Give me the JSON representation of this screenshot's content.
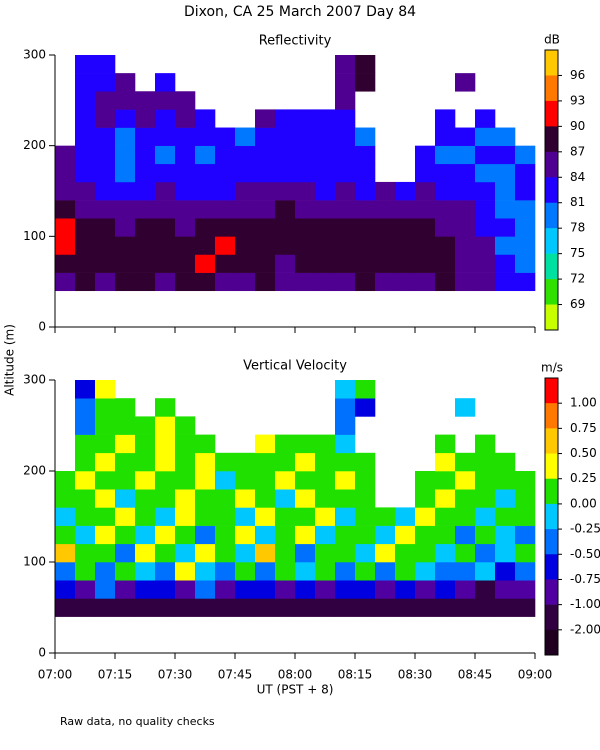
{
  "title": "Dixon, CA 25 March 2007  Day  84",
  "ylabel": "Altitude (m)",
  "note": "Raw data, no quality checks",
  "chart_data": [
    {
      "type": "heatmap",
      "title": "Reflectivity",
      "x": [
        "07:00",
        "07:05",
        "07:10",
        "07:15",
        "07:20",
        "07:25",
        "07:30",
        "07:35",
        "07:40",
        "07:45",
        "07:50",
        "07:55",
        "08:00",
        "08:05",
        "08:10",
        "08:15",
        "08:20",
        "08:25",
        "08:30",
        "08:35",
        "08:40",
        "08:45",
        "08:50",
        "08:55"
      ],
      "y": [
        40,
        60,
        80,
        100,
        120,
        140,
        160,
        180,
        200,
        220,
        240,
        260,
        280
      ],
      "values": [
        [
          86,
          87,
          86,
          88,
          87,
          86,
          88,
          87,
          86,
          85,
          87,
          86,
          86,
          85,
          86,
          87,
          86,
          85,
          86,
          87,
          86,
          84,
          83,
          82
        ],
        [
          88,
          89,
          87,
          88,
          89,
          87,
          88,
          90,
          89,
          88,
          87,
          86,
          88,
          87,
          88,
          89,
          88,
          87,
          88,
          87,
          86,
          85,
          82,
          80
        ],
        [
          90,
          89,
          88,
          87,
          88,
          89,
          87,
          88,
          90,
          89,
          88,
          89,
          87,
          89,
          88,
          88,
          87,
          88,
          89,
          87,
          86,
          84,
          80,
          79
        ],
        [
          91,
          89,
          87,
          86,
          87,
          88,
          86,
          87,
          88,
          87,
          88,
          89,
          88,
          88,
          87,
          87,
          88,
          87,
          88,
          86,
          85,
          83,
          81,
          80
        ],
        [
          88,
          86,
          85,
          84,
          85,
          86,
          85,
          85,
          86,
          85,
          86,
          87,
          86,
          85,
          86,
          85,
          86,
          85,
          86,
          85,
          84,
          82,
          80,
          80
        ],
        [
          86,
          84,
          83,
          82,
          83,
          84,
          83,
          82,
          83,
          84,
          84,
          85,
          84,
          83,
          84,
          83,
          84,
          83,
          84,
          83,
          82,
          81,
          80,
          81
        ],
        [
          84,
          82,
          81,
          80,
          82,
          81,
          82,
          81,
          82,
          82,
          83,
          82,
          83,
          82,
          82,
          82,
          null,
          null,
          82,
          81,
          81,
          80,
          80,
          81
        ],
        [
          85,
          83,
          81,
          80,
          81,
          80,
          81,
          80,
          81,
          81,
          82,
          81,
          82,
          81,
          82,
          81,
          null,
          null,
          81,
          80,
          80,
          81,
          81,
          80
        ],
        [
          null,
          83,
          81,
          80,
          81,
          82,
          81,
          82,
          81,
          80,
          82,
          81,
          82,
          82,
          81,
          80,
          null,
          null,
          null,
          82,
          81,
          80,
          79,
          null
        ],
        [
          null,
          82,
          84,
          82,
          84,
          83,
          84,
          83,
          null,
          null,
          84,
          83,
          83,
          82,
          82,
          null,
          null,
          null,
          null,
          83,
          null,
          81,
          null,
          null
        ],
        [
          null,
          82,
          84,
          85,
          84,
          85,
          84,
          null,
          null,
          null,
          null,
          null,
          null,
          null,
          86,
          null,
          null,
          null,
          null,
          null,
          null,
          null,
          null,
          null
        ],
        [
          null,
          82,
          83,
          84,
          null,
          83,
          null,
          null,
          null,
          null,
          null,
          null,
          null,
          null,
          86,
          87,
          null,
          null,
          null,
          null,
          84,
          null,
          null,
          null
        ],
        [
          null,
          83,
          82,
          null,
          null,
          null,
          null,
          null,
          null,
          null,
          null,
          null,
          null,
          null,
          86,
          87,
          null,
          null,
          null,
          null,
          null,
          null,
          null,
          null
        ]
      ],
      "xlim": [
        "07:00",
        "09:00"
      ],
      "ylim": [
        0,
        300
      ],
      "xticks": [
        "07:00",
        "07:15",
        "07:30",
        "07:45",
        "08:00",
        "08:15",
        "08:30",
        "08:45",
        "09:00"
      ],
      "yticks": [
        0,
        100,
        200,
        300
      ],
      "colorbar": {
        "label": "dB",
        "ticks": [
          96,
          93,
          90,
          87,
          84,
          81,
          78,
          75,
          72,
          69
        ],
        "colors": [
          "#ffc800",
          "#ff7800",
          "#ff0000",
          "#300030",
          "#500090",
          "#2000ff",
          "#0078ff",
          "#00c8ff",
          "#00e0a0",
          "#30e000",
          "#c8ff00"
        ]
      }
    },
    {
      "type": "heatmap",
      "title": "Vertical Velocity",
      "xlabel": "UT  (PST + 8)",
      "x": [
        "07:00",
        "07:05",
        "07:10",
        "07:15",
        "07:20",
        "07:25",
        "07:30",
        "07:35",
        "07:40",
        "07:45",
        "07:50",
        "07:55",
        "08:00",
        "08:05",
        "08:10",
        "08:15",
        "08:20",
        "08:25",
        "08:30",
        "08:35",
        "08:40",
        "08:45",
        "08:50",
        "08:55"
      ],
      "y": [
        40,
        60,
        80,
        100,
        120,
        140,
        160,
        180,
        200,
        220,
        240,
        260,
        280
      ],
      "values": [
        [
          -1.5,
          -1.2,
          -1.5,
          -1.1,
          -1.3,
          -1.6,
          -1.2,
          -1.4,
          -1.1,
          -1.5,
          -1.3,
          -1.2,
          -1.6,
          -1.3,
          -1.4,
          -1.2,
          -1.5,
          -1.3,
          -1.1,
          -1.4,
          -1.6,
          -1.5,
          -1.7,
          -1.3
        ],
        [
          -0.6,
          -0.8,
          -0.5,
          -0.9,
          -0.7,
          -0.6,
          -0.8,
          -0.5,
          -0.9,
          -0.6,
          -0.7,
          -0.8,
          -0.6,
          -0.9,
          -0.7,
          -0.6,
          -0.8,
          -0.7,
          -0.9,
          -0.6,
          -0.8,
          -1.1,
          -0.9,
          -0.8
        ],
        [
          -0.3,
          0.1,
          -0.4,
          0.2,
          -0.2,
          -0.5,
          0.3,
          -0.1,
          -0.3,
          0.1,
          -0.4,
          0.2,
          -0.2,
          0.0,
          -0.3,
          0.1,
          -0.5,
          0.2,
          -0.1,
          -0.3,
          -0.4,
          -0.2,
          -0.6,
          -0.4
        ],
        [
          0.6,
          0.0,
          0.2,
          -0.3,
          0.4,
          0.1,
          -0.2,
          0.3,
          0.0,
          -0.1,
          0.5,
          0.1,
          -0.3,
          0.2,
          0.1,
          -0.2,
          0.3,
          0.0,
          0.2,
          -0.1,
          0.1,
          -0.3,
          -0.2,
          0.0
        ],
        [
          0.1,
          -0.2,
          0.3,
          0.1,
          -0.1,
          0.4,
          0.2,
          -0.3,
          0.1,
          0.3,
          -0.2,
          0.0,
          0.4,
          -0.1,
          0.2,
          0.0,
          -0.2,
          0.3,
          0.1,
          0.0,
          -0.3,
          0.2,
          -0.1,
          -0.4
        ],
        [
          -0.1,
          0.2,
          0.0,
          0.4,
          0.1,
          -0.2,
          0.3,
          0.1,
          0.2,
          -0.1,
          0.3,
          0.2,
          0.0,
          0.3,
          -0.2,
          0.1,
          0.2,
          -0.1,
          0.3,
          0.1,
          0.2,
          -0.2,
          0.1,
          0.0
        ],
        [
          0.2,
          0.0,
          0.3,
          -0.1,
          0.2,
          0.1,
          0.4,
          0.0,
          0.2,
          0.3,
          0.1,
          -0.1,
          0.3,
          0.1,
          0.0,
          0.2,
          null,
          null,
          0.1,
          0.3,
          0.0,
          0.2,
          -0.1,
          0.1
        ],
        [
          0.0,
          0.3,
          0.1,
          0.2,
          0.4,
          0.0,
          0.2,
          0.3,
          -0.1,
          0.1,
          0.2,
          0.3,
          0.1,
          0.0,
          0.3,
          0.1,
          null,
          null,
          0.2,
          0.1,
          0.3,
          0.1,
          0.0,
          0.2
        ],
        [
          null,
          0.1,
          0.3,
          0.0,
          0.2,
          0.3,
          0.1,
          0.4,
          0.0,
          0.2,
          0.1,
          0.0,
          0.3,
          0.2,
          0.1,
          0.0,
          null,
          null,
          null,
          0.3,
          0.1,
          0.0,
          0.2,
          null
        ],
        [
          null,
          0.2,
          0.0,
          0.3,
          0.1,
          0.4,
          0.2,
          0.1,
          null,
          null,
          0.3,
          0.2,
          0.1,
          0.0,
          -0.1,
          null,
          null,
          null,
          null,
          0.2,
          null,
          0.1,
          null,
          null
        ],
        [
          null,
          -0.3,
          0.1,
          0.2,
          0.0,
          0.3,
          0.1,
          null,
          null,
          null,
          null,
          null,
          null,
          null,
          -0.4,
          null,
          null,
          null,
          null,
          null,
          null,
          null,
          null,
          null
        ],
        [
          null,
          -0.5,
          0.2,
          0.1,
          null,
          0.0,
          null,
          null,
          null,
          null,
          null,
          null,
          null,
          null,
          -0.3,
          -0.6,
          null,
          null,
          null,
          null,
          -0.2,
          null,
          null,
          null
        ],
        [
          null,
          -0.6,
          0.3,
          null,
          null,
          null,
          null,
          null,
          null,
          null,
          null,
          null,
          null,
          null,
          -0.2,
          0.1,
          null,
          null,
          null,
          null,
          null,
          null,
          null,
          null
        ]
      ],
      "xlim": [
        "07:00",
        "09:00"
      ],
      "ylim": [
        0,
        300
      ],
      "xticks": [
        "07:00",
        "07:15",
        "07:30",
        "07:45",
        "08:00",
        "08:15",
        "08:30",
        "08:45",
        "09:00"
      ],
      "yticks": [
        0,
        100,
        200,
        300
      ],
      "colorbar": {
        "label": "m/s",
        "ticks": [
          {
            "value": 1,
            "label": "1.00"
          },
          {
            "value": 0.75,
            "label": "0.75"
          },
          {
            "value": 0.5,
            "label": "0.50"
          },
          {
            "value": 0.25,
            "label": "0.25"
          },
          {
            "value": 0,
            "label": "0.00"
          },
          {
            "value": -0.25,
            "label": "-0.25"
          },
          {
            "value": -0.5,
            "label": "-0.50"
          },
          {
            "value": -0.75,
            "label": "-0.75"
          },
          {
            "value": -1,
            "label": "-1.00"
          },
          {
            "value": -2,
            "label": "-2.00"
          }
        ],
        "colors": [
          "#ff0000",
          "#ff7800",
          "#ffc800",
          "#ffff00",
          "#20e000",
          "#00c8ff",
          "#0070ff",
          "#0000e0",
          "#5000a0",
          "#300040",
          "#200020"
        ]
      }
    }
  ]
}
